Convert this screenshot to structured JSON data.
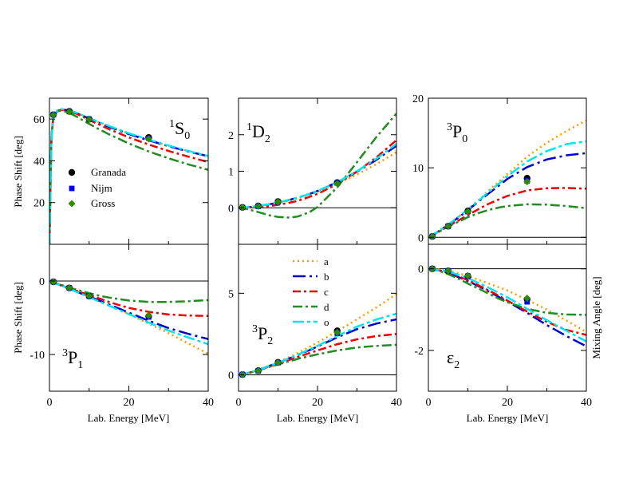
{
  "colors": {
    "a": "#ff9900",
    "b": "#0000cc",
    "c": "#ee0000",
    "d": "#228b22",
    "o": "#00e5ee",
    "granada": "#000000",
    "nijm": "#0000ee",
    "gross": "#2e8b00"
  },
  "legend_data": {
    "granada": "Granada",
    "nijm": "Nijm",
    "gross": "Gross"
  },
  "legend_models": [
    "a",
    "b",
    "c",
    "d",
    "o"
  ],
  "labels": {
    "xlabel": "Lab. Energy [MeV]",
    "ylabel_left": "Phase Shift [deg]",
    "ylabel_right": "Mixing Angle [deg]"
  },
  "chart_data": [
    {
      "id": "1S0",
      "type": "line",
      "label": {
        "sup": "1",
        "main": "S",
        "sub": "0"
      },
      "xlim": [
        0,
        40
      ],
      "ylim": [
        0,
        70
      ],
      "xticks": [],
      "yticks": [
        20,
        40,
        60
      ],
      "ytick_labels": [
        "20",
        "40",
        "60"
      ],
      "x": [
        0,
        0.5,
        1,
        2,
        3,
        4,
        5,
        6,
        7,
        8,
        10,
        12,
        15,
        20,
        25,
        30,
        35,
        40
      ],
      "series": [
        {
          "key": "a",
          "values": [
            0,
            52,
            61,
            64,
            64.5,
            64.4,
            64,
            63.4,
            62.7,
            61.9,
            60.3,
            58.8,
            56.6,
            53.1,
            50,
            47.2,
            44.6,
            42.2
          ]
        },
        {
          "key": "b",
          "values": [
            0,
            52,
            61,
            64,
            64.5,
            64.4,
            64,
            63.4,
            62.7,
            61.9,
            60.2,
            58.6,
            56.3,
            52.8,
            49.8,
            47,
            44.5,
            42.2
          ]
        },
        {
          "key": "c",
          "values": [
            0,
            52,
            61,
            64,
            64.5,
            64.3,
            63.9,
            63.2,
            62.4,
            61.5,
            59.6,
            57.8,
            55.2,
            51.2,
            47.8,
            44.7,
            42,
            39.4
          ]
        },
        {
          "key": "d",
          "values": [
            0,
            52,
            61,
            63.8,
            64,
            63.6,
            62.9,
            62,
            61,
            59.9,
            57.7,
            55.6,
            52.7,
            48.3,
            44.5,
            41.2,
            38.3,
            35.7
          ]
        },
        {
          "key": "o",
          "values": [
            0,
            51,
            61,
            64.3,
            64.8,
            64.6,
            64.2,
            63.6,
            62.9,
            62.1,
            60.5,
            58.9,
            56.7,
            53.2,
            50.1,
            47.3,
            44.7,
            42.3
          ]
        }
      ],
      "points": {
        "x": [
          1,
          5,
          10,
          25
        ],
        "granada": [
          62.1,
          63.7,
          59.9,
          51.2
        ],
        "nijm": [
          62.1,
          63.6,
          60,
          50.9
        ],
        "gross": [
          62,
          63.5,
          59.8,
          50.5
        ]
      }
    },
    {
      "id": "1D2",
      "type": "line",
      "label": {
        "sup": "1",
        "main": "D",
        "sub": "2"
      },
      "xlim": [
        0,
        40
      ],
      "ylim": [
        -1,
        3
      ],
      "xticks": [],
      "yticks": [
        0,
        1,
        2
      ],
      "ytick_labels": [
        "0",
        "1",
        "2"
      ],
      "x": [
        0,
        2,
        5,
        8,
        10,
        13,
        15,
        18,
        20,
        25,
        30,
        35,
        40
      ],
      "series": [
        {
          "key": "a",
          "values": [
            0,
            0.01,
            0.04,
            0.09,
            0.13,
            0.2,
            0.26,
            0.36,
            0.44,
            0.66,
            0.91,
            1.2,
            1.52
          ]
        },
        {
          "key": "b",
          "values": [
            0,
            0.01,
            0.05,
            0.1,
            0.14,
            0.22,
            0.28,
            0.38,
            0.46,
            0.7,
            0.99,
            1.32,
            1.7
          ]
        },
        {
          "key": "c",
          "values": [
            0,
            0.005,
            0.02,
            0.05,
            0.08,
            0.14,
            0.19,
            0.3,
            0.38,
            0.65,
            0.99,
            1.39,
            1.85
          ]
        },
        {
          "key": "d",
          "values": [
            0,
            -0.03,
            -0.12,
            -0.21,
            -0.25,
            -0.27,
            -0.24,
            -0.12,
            0.02,
            0.56,
            1.25,
            1.95,
            2.58
          ]
        },
        {
          "key": "o",
          "values": [
            0,
            0.01,
            0.05,
            0.1,
            0.14,
            0.22,
            0.28,
            0.38,
            0.46,
            0.7,
            1,
            1.35,
            1.75
          ]
        }
      ],
      "points": {
        "x": [
          1,
          5,
          10,
          25
        ],
        "granada": [
          0.01,
          0.05,
          0.17,
          0.69
        ],
        "nijm": [
          0.01,
          0.04,
          0.16,
          0.68
        ],
        "gross": [
          0.01,
          0.04,
          0.16,
          0.66
        ]
      }
    },
    {
      "id": "3P0",
      "type": "line",
      "label": {
        "sup": "3",
        "main": "P",
        "sub": "0"
      },
      "xlim": [
        0,
        40
      ],
      "ylim": [
        -1,
        20
      ],
      "xticks": [],
      "yticks": [
        0,
        10,
        20
      ],
      "ytick_labels": [
        "0",
        "10",
        "20"
      ],
      "x": [
        0,
        2,
        5,
        8,
        10,
        13,
        15,
        18,
        20,
        25,
        30,
        35,
        40
      ],
      "series": [
        {
          "key": "a",
          "values": [
            0,
            0.65,
            1.8,
            3.1,
            4.05,
            5.5,
            6.6,
            8.1,
            9.1,
            11.6,
            13.6,
            15.3,
            16.8
          ]
        },
        {
          "key": "b",
          "values": [
            0,
            0.65,
            1.8,
            3.0,
            3.9,
            5.3,
            6.2,
            7.5,
            8.4,
            10.1,
            11.2,
            11.8,
            12.1
          ]
        },
        {
          "key": "c",
          "values": [
            0,
            0.6,
            1.6,
            2.55,
            3.2,
            4.15,
            4.75,
            5.5,
            5.95,
            6.75,
            7.05,
            7.1,
            7.0
          ]
        },
        {
          "key": "d",
          "values": [
            0,
            0.6,
            1.55,
            2.35,
            2.9,
            3.55,
            3.9,
            4.3,
            4.5,
            4.75,
            4.7,
            4.5,
            4.2
          ]
        },
        {
          "key": "o",
          "values": [
            0,
            0.65,
            1.85,
            3.1,
            4.0,
            5.4,
            6.4,
            7.8,
            8.8,
            10.9,
            12.4,
            13.4,
            13.8
          ]
        }
      ],
      "points": {
        "x": [
          1,
          5,
          10,
          25
        ],
        "granada": [
          0.13,
          1.6,
          3.8,
          8.5
        ],
        "nijm": [
          0.13,
          1.6,
          3.7,
          8.1
        ],
        "gross": [
          0.13,
          1.6,
          3.7,
          8.0
        ]
      }
    },
    {
      "id": "3P1",
      "type": "line",
      "label": {
        "sup": "3",
        "main": "P",
        "sub": "1"
      },
      "xlim": [
        0,
        40
      ],
      "ylim": [
        -15,
        5
      ],
      "xticks": [
        0,
        20,
        40
      ],
      "yticks": [
        -10,
        0
      ],
      "ytick_labels": [
        "-10",
        "0"
      ],
      "x": [
        0,
        2,
        5,
        8,
        10,
        13,
        15,
        18,
        20,
        25,
        30,
        35,
        40
      ],
      "series": [
        {
          "key": "a",
          "values": [
            0,
            -0.4,
            -1.05,
            -1.7,
            -2.15,
            -2.85,
            -3.3,
            -4.0,
            -4.5,
            -5.8,
            -7.1,
            -8.5,
            -9.9
          ]
        },
        {
          "key": "b",
          "values": [
            0,
            -0.4,
            -1.05,
            -1.7,
            -2.1,
            -2.75,
            -3.2,
            -3.85,
            -4.3,
            -5.4,
            -6.4,
            -7.2,
            -7.9
          ]
        },
        {
          "key": "c",
          "values": [
            0,
            -0.38,
            -0.98,
            -1.55,
            -1.9,
            -2.45,
            -2.85,
            -3.35,
            -3.65,
            -4.2,
            -4.55,
            -4.7,
            -4.75
          ]
        },
        {
          "key": "d",
          "values": [
            0,
            -0.35,
            -0.9,
            -1.35,
            -1.65,
            -2.05,
            -2.25,
            -2.5,
            -2.65,
            -2.85,
            -2.85,
            -2.75,
            -2.6
          ]
        },
        {
          "key": "o",
          "values": [
            0,
            -0.4,
            -1.05,
            -1.75,
            -2.2,
            -2.9,
            -3.35,
            -4.05,
            -4.5,
            -5.65,
            -6.75,
            -7.7,
            -8.6
          ]
        }
      ],
      "points": {
        "x": [
          1,
          5,
          10,
          25
        ],
        "granada": [
          -0.11,
          -0.94,
          -2.06,
          -4.8
        ],
        "nijm": [
          -0.11,
          -0.94,
          -2.05,
          -4.9
        ],
        "gross": [
          -0.11,
          -0.94,
          -2.03,
          -4.7
        ]
      }
    },
    {
      "id": "3P2",
      "type": "line",
      "label": {
        "sup": "3",
        "main": "P",
        "sub": "2"
      },
      "xlim": [
        0,
        40
      ],
      "ylim": [
        -1,
        8
      ],
      "xticks": [
        0,
        20,
        40
      ],
      "yticks": [
        0,
        5
      ],
      "ytick_labels": [
        "0",
        "5"
      ],
      "x": [
        0,
        2,
        5,
        8,
        10,
        13,
        15,
        18,
        20,
        25,
        30,
        35,
        40
      ],
      "series": [
        {
          "key": "a",
          "values": [
            0,
            0.08,
            0.3,
            0.58,
            0.78,
            1.1,
            1.35,
            1.72,
            1.98,
            2.68,
            3.4,
            4.15,
            4.95
          ]
        },
        {
          "key": "b",
          "values": [
            0,
            0.08,
            0.3,
            0.56,
            0.74,
            1.02,
            1.22,
            1.52,
            1.74,
            2.3,
            2.8,
            3.15,
            3.4
          ]
        },
        {
          "key": "c",
          "values": [
            0,
            0.08,
            0.28,
            0.52,
            0.68,
            0.93,
            1.1,
            1.34,
            1.5,
            1.88,
            2.18,
            2.38,
            2.5
          ]
        },
        {
          "key": "d",
          "values": [
            0,
            0.08,
            0.27,
            0.5,
            0.64,
            0.85,
            0.98,
            1.15,
            1.26,
            1.5,
            1.68,
            1.78,
            1.84
          ]
        },
        {
          "key": "o",
          "values": [
            0,
            0.08,
            0.3,
            0.56,
            0.74,
            1.03,
            1.24,
            1.56,
            1.78,
            2.38,
            2.95,
            3.4,
            3.75
          ]
        }
      ],
      "points": {
        "x": [
          1,
          5,
          10,
          25
        ],
        "granada": [
          0.02,
          0.26,
          0.77,
          2.7
        ],
        "nijm": [
          0.02,
          0.25,
          0.75,
          2.55
        ],
        "gross": [
          0.02,
          0.25,
          0.75,
          2.6
        ]
      }
    },
    {
      "id": "eps2",
      "type": "line",
      "label": {
        "sup": "",
        "main": "ε",
        "sub": "2"
      },
      "xlim": [
        0,
        40
      ],
      "ylim": [
        -3,
        0.6
      ],
      "xticks": [
        0,
        20,
        40
      ],
      "yticks": [
        -2,
        0
      ],
      "ytick_labels": [
        "-2",
        "0"
      ],
      "x": [
        0,
        2,
        5,
        8,
        10,
        13,
        15,
        18,
        20,
        25,
        30,
        35,
        40
      ],
      "series": [
        {
          "key": "a",
          "values": [
            0,
            -0.01,
            -0.05,
            -0.12,
            -0.18,
            -0.28,
            -0.35,
            -0.46,
            -0.53,
            -0.76,
            -1.0,
            -1.27,
            -1.55
          ]
        },
        {
          "key": "b",
          "values": [
            0,
            -0.02,
            -0.1,
            -0.22,
            -0.3,
            -0.44,
            -0.54,
            -0.7,
            -0.8,
            -1.08,
            -1.38,
            -1.65,
            -1.9
          ]
        },
        {
          "key": "c",
          "values": [
            0,
            -0.02,
            -0.09,
            -0.2,
            -0.28,
            -0.42,
            -0.52,
            -0.67,
            -0.78,
            -1.05,
            -1.3,
            -1.5,
            -1.62
          ]
        },
        {
          "key": "d",
          "values": [
            0,
            -0.03,
            -0.13,
            -0.26,
            -0.36,
            -0.5,
            -0.6,
            -0.74,
            -0.82,
            -0.98,
            -1.08,
            -1.12,
            -1.13
          ]
        },
        {
          "key": "o",
          "values": [
            0,
            -0.02,
            -0.07,
            -0.16,
            -0.23,
            -0.36,
            -0.45,
            -0.6,
            -0.7,
            -0.98,
            -1.26,
            -1.52,
            -1.78
          ]
        }
      ],
      "points": {
        "x": [
          1,
          5,
          10,
          25
        ],
        "granada": [
          0,
          -0.05,
          -0.18,
          -0.75
        ],
        "nijm": [
          0,
          -0.05,
          -0.18,
          -0.81
        ],
        "gross": [
          0,
          -0.05,
          -0.17,
          -0.72
        ]
      }
    }
  ]
}
